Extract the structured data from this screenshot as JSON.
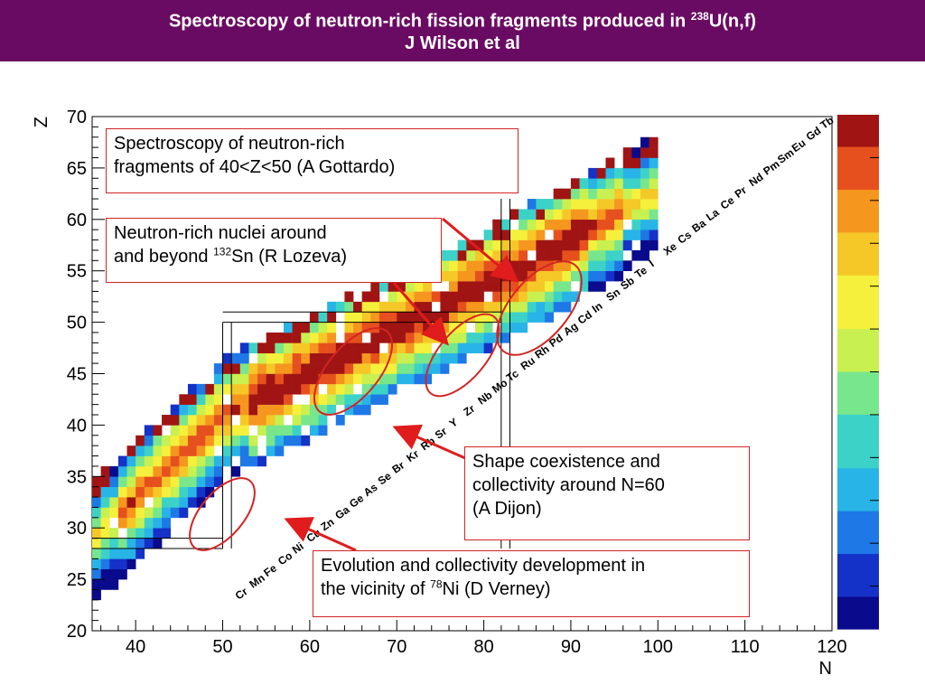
{
  "header": {
    "title_main": "Spectroscopy of neutron-rich fission fragments produced in ",
    "title_sup": "238",
    "title_tail": "U(n,f)",
    "subtitle": "J Wilson et al"
  },
  "annotations": [
    {
      "id": "gottardo",
      "lines": [
        [
          "Spectroscopy of neutron-rich"
        ],
        [
          "fragments of 40<Z<50 (A Gottardo)"
        ]
      ]
    },
    {
      "id": "lozeva",
      "lines": [
        [
          "Neutron-rich nuclei around"
        ],
        [
          "and beyond ",
          "132",
          "Sn (R Lozeva)"
        ]
      ]
    },
    {
      "id": "dijon",
      "lines": [
        [
          "Shape coexistence and"
        ],
        [
          "collectivity around N=60"
        ],
        [
          "(A Dijon)"
        ]
      ]
    },
    {
      "id": "verney",
      "lines": [
        [
          "Evolution and collectivity development in"
        ],
        [
          "the vicinity of ",
          "78",
          "Ni (D Verney)"
        ]
      ]
    }
  ],
  "chart_data": {
    "type": "heatmap",
    "xlabel": "N",
    "ylabel": "Z",
    "xlim": [
      35,
      120
    ],
    "ylim": [
      20,
      70
    ],
    "xticks": [
      40,
      50,
      60,
      70,
      80,
      90,
      100,
      110,
      120
    ],
    "yticks": [
      20,
      25,
      30,
      35,
      40,
      45,
      50,
      55,
      60,
      65,
      70
    ],
    "magic_lines": {
      "N": [
        50,
        82
      ],
      "Z": [
        28,
        50
      ]
    },
    "element_labels": [
      {
        "s": "Cr",
        "z": 24
      },
      {
        "s": "Mn",
        "z": 25
      },
      {
        "s": "Fe",
        "z": 26
      },
      {
        "s": "Co",
        "z": 27
      },
      {
        "s": "Ni",
        "z": 28
      },
      {
        "s": "Cu",
        "z": 29
      },
      {
        "s": "Zn",
        "z": 30
      },
      {
        "s": "Ga",
        "z": 31
      },
      {
        "s": "Ge",
        "z": 32
      },
      {
        "s": "As",
        "z": 33
      },
      {
        "s": "Se",
        "z": 34
      },
      {
        "s": "Br",
        "z": 35
      },
      {
        "s": "Kr",
        "z": 36
      },
      {
        "s": "Rb",
        "z": 37
      },
      {
        "s": "Sr",
        "z": 38
      },
      {
        "s": "Y",
        "z": 39
      },
      {
        "s": "Zr",
        "z": 40
      },
      {
        "s": "Nb",
        "z": 41
      },
      {
        "s": "Mo",
        "z": 42
      },
      {
        "s": "Tc",
        "z": 43
      },
      {
        "s": "Ru",
        "z": 44
      },
      {
        "s": "Rh",
        "z": 45
      },
      {
        "s": "Pd",
        "z": 46
      },
      {
        "s": "Ag",
        "z": 47
      },
      {
        "s": "Cd",
        "z": 48
      },
      {
        "s": "In",
        "z": 49
      },
      {
        "s": "Sn",
        "z": 50
      },
      {
        "s": "Sb",
        "z": 51
      },
      {
        "s": "Te",
        "z": 52
      },
      {
        "s": "I",
        "z": 53
      },
      {
        "s": "Xe",
        "z": 54
      },
      {
        "s": "Cs",
        "z": 55
      },
      {
        "s": "Ba",
        "z": 56
      },
      {
        "s": "La",
        "z": 57
      },
      {
        "s": "Ce",
        "z": 58
      },
      {
        "s": "Pr",
        "z": 59
      },
      {
        "s": "Nd",
        "z": 60
      },
      {
        "s": "Pm",
        "z": 61
      },
      {
        "s": "Sm",
        "z": 62
      },
      {
        "s": "Eu",
        "z": 63
      },
      {
        "s": "Gd",
        "z": 64
      },
      {
        "s": "Tb",
        "z": 65
      }
    ],
    "colorscale": [
      "#0a0a8c",
      "#1432c8",
      "#1e78e6",
      "#28b4e6",
      "#3cd2c8",
      "#78e68c",
      "#c8f050",
      "#f5f03c",
      "#f5c828",
      "#f5961e",
      "#e6501e",
      "#a01414"
    ]
  }
}
